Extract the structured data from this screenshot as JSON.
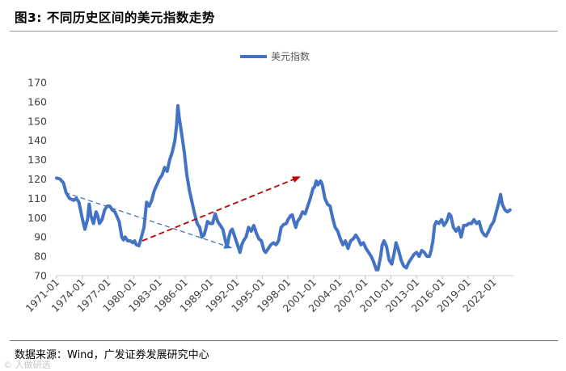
{
  "figure": {
    "title": "图3: 不同历史区间的美元指数走势",
    "source": "数据来源：Wind，广发证券发展研究中心",
    "watermark": "© 人做研选"
  },
  "colors": {
    "series": "#4472C4",
    "up_arrow": "#C00000",
    "down_arrow": "#4472C4",
    "axis_text": "#404040"
  },
  "chart_data": {
    "type": "line",
    "title": "图3: 不同历史区间的美元指数走势",
    "xlabel": "",
    "ylabel": "",
    "ylim": [
      70,
      170
    ],
    "yticks": [
      70,
      80,
      90,
      100,
      110,
      120,
      130,
      140,
      150,
      160,
      170
    ],
    "xlim": [
      1971.0,
      2024.3
    ],
    "xticks": [
      "1971-01",
      "1974-01",
      "1977-01",
      "1980-01",
      "1983-01",
      "1986-01",
      "1989-01",
      "1992-01",
      "1995-01",
      "1998-01",
      "2001-01",
      "2004-01",
      "2007-01",
      "2010-01",
      "2013-01",
      "2016-01",
      "2019-01",
      "2022-01"
    ],
    "legend": {
      "position": "top-center"
    },
    "grid": false,
    "series": [
      {
        "name": "美元指数",
        "x": [
          1971.0,
          1971.4,
          1971.8,
          1972.1,
          1972.5,
          1973.0,
          1973.3,
          1973.6,
          1974.0,
          1974.3,
          1974.6,
          1974.8,
          1975.0,
          1975.3,
          1975.6,
          1975.8,
          1976.0,
          1976.3,
          1976.6,
          1976.9,
          1977.2,
          1977.5,
          1977.8,
          1978.0,
          1978.3,
          1978.6,
          1978.8,
          1979.0,
          1979.3,
          1979.6,
          1979.9,
          1980.1,
          1980.3,
          1980.6,
          1980.9,
          1981.2,
          1981.5,
          1981.8,
          1982.1,
          1982.4,
          1982.7,
          1983.0,
          1983.3,
          1983.6,
          1983.9,
          1984.2,
          1984.5,
          1984.8,
          1985.0,
          1985.15,
          1985.3,
          1985.6,
          1985.9,
          1986.2,
          1986.5,
          1986.8,
          1987.1,
          1987.4,
          1987.7,
          1987.95,
          1988.2,
          1988.4,
          1988.6,
          1988.9,
          1989.2,
          1989.5,
          1989.8,
          1990.1,
          1990.4,
          1990.7,
          1990.9,
          1991.1,
          1991.3,
          1991.5,
          1991.8,
          1992.1,
          1992.4,
          1992.6,
          1992.8,
          1993.1,
          1993.4,
          1993.7,
          1994.0,
          1994.3,
          1994.6,
          1994.9,
          1995.2,
          1995.4,
          1995.7,
          1996.0,
          1996.3,
          1996.6,
          1996.9,
          1997.2,
          1997.5,
          1997.8,
          1998.0,
          1998.3,
          1998.5,
          1998.7,
          1998.9,
          1999.1,
          1999.4,
          1999.7,
          2000.0,
          2000.3,
          2000.6,
          2000.9,
          2001.1,
          2001.3,
          2001.5,
          2001.8,
          2002.0,
          2002.3,
          2002.6,
          2002.9,
          2003.2,
          2003.5,
          2003.8,
          2004.1,
          2004.4,
          2004.7,
          2005.0,
          2005.3,
          2005.6,
          2005.9,
          2006.2,
          2006.5,
          2006.8,
          2007.1,
          2007.4,
          2007.7,
          2008.0,
          2008.3,
          2008.5,
          2008.8,
          2009.0,
          2009.2,
          2009.5,
          2009.8,
          2010.1,
          2010.4,
          2010.6,
          2010.9,
          2011.2,
          2011.5,
          2011.8,
          2012.1,
          2012.4,
          2012.7,
          2013.0,
          2013.3,
          2013.6,
          2013.9,
          2014.2,
          2014.5,
          2014.7,
          2014.9,
          2015.1,
          2015.3,
          2015.6,
          2015.9,
          2016.2,
          2016.5,
          2016.8,
          2017.0,
          2017.3,
          2017.6,
          2017.9,
          2018.2,
          2018.5,
          2018.8,
          2019.1,
          2019.4,
          2019.7,
          2020.0,
          2020.3,
          2020.6,
          2020.9,
          2021.1,
          2021.4,
          2021.7,
          2022.0,
          2022.3,
          2022.6,
          2022.8,
          2023.0,
          2023.3,
          2023.6,
          2023.9
        ],
        "values": [
          120.5,
          120.0,
          118.0,
          113.0,
          110.0,
          109.0,
          110.0,
          108.0,
          99.5,
          94.0,
          99.0,
          107.0,
          101.0,
          97.0,
          103.0,
          101.0,
          97.0,
          99.0,
          104.0,
          106.0,
          106.0,
          104.0,
          103.0,
          101.0,
          98.0,
          90.0,
          88.5,
          90.0,
          88.0,
          88.0,
          87.0,
          88.0,
          86.0,
          85.5,
          90.0,
          95.0,
          108.0,
          106.0,
          109.0,
          114.0,
          117.0,
          120.0,
          122.0,
          126.0,
          124.0,
          130.0,
          134.0,
          140.0,
          148.0,
          158.0,
          152.0,
          143.0,
          134.0,
          122.0,
          114.0,
          108.0,
          102.0,
          97.0,
          95.0,
          90.0,
          91.0,
          94.0,
          98.0,
          97.0,
          97.0,
          102.0,
          98.0,
          96.0,
          94.0,
          88.0,
          85.0,
          90.0,
          93.0,
          94.0,
          90.0,
          86.0,
          82.0,
          86.0,
          88.0,
          90.0,
          95.0,
          93.0,
          96.0,
          92.0,
          89.0,
          88.0,
          83.0,
          82.0,
          84.0,
          86.0,
          87.0,
          86.0,
          88.0,
          95.0,
          96.5,
          97.0,
          99.0,
          101.0,
          101.5,
          98.0,
          95.0,
          98.0,
          100.0,
          103.0,
          102.0,
          106.0,
          110.0,
          115.0,
          116.0,
          119.0,
          117.0,
          119.0,
          117.0,
          110.0,
          107.0,
          106.0,
          100.0,
          95.0,
          93.0,
          89.0,
          86.0,
          88.0,
          84.0,
          88.0,
          89.0,
          91.0,
          89.0,
          86.0,
          87.0,
          84.0,
          82.0,
          80.0,
          77.0,
          73.0,
          73.0,
          80.0,
          86.0,
          88.0,
          85.0,
          78.0,
          76.0,
          82.0,
          87.0,
          83.0,
          78.0,
          75.0,
          74.0,
          77.0,
          79.0,
          81.0,
          82.0,
          80.0,
          83.0,
          82.0,
          80.0,
          80.0,
          83.0,
          88.0,
          96.0,
          98.0,
          97.0,
          99.0,
          96.0,
          98.0,
          102.0,
          101.0,
          95.0,
          93.0,
          95.0,
          90.0,
          96.0,
          96.0,
          97.0,
          97.0,
          99.0,
          97.0,
          98.0,
          93.0,
          91.0,
          90.5,
          93.0,
          96.0,
          98.0,
          103.0,
          108.0,
          112.0,
          107.0,
          104.0,
          103.0,
          104.0
        ]
      }
    ],
    "annotations": [
      {
        "type": "arrow",
        "style": "dashed",
        "color": "blue",
        "from": [
          1972.0,
          113.0
        ],
        "to": [
          1991.3,
          84.5
        ]
      },
      {
        "type": "arrow",
        "style": "dashed",
        "color": "red",
        "from": [
          1981.0,
          88.0
        ],
        "to": [
          1999.3,
          121.0
        ]
      }
    ]
  }
}
